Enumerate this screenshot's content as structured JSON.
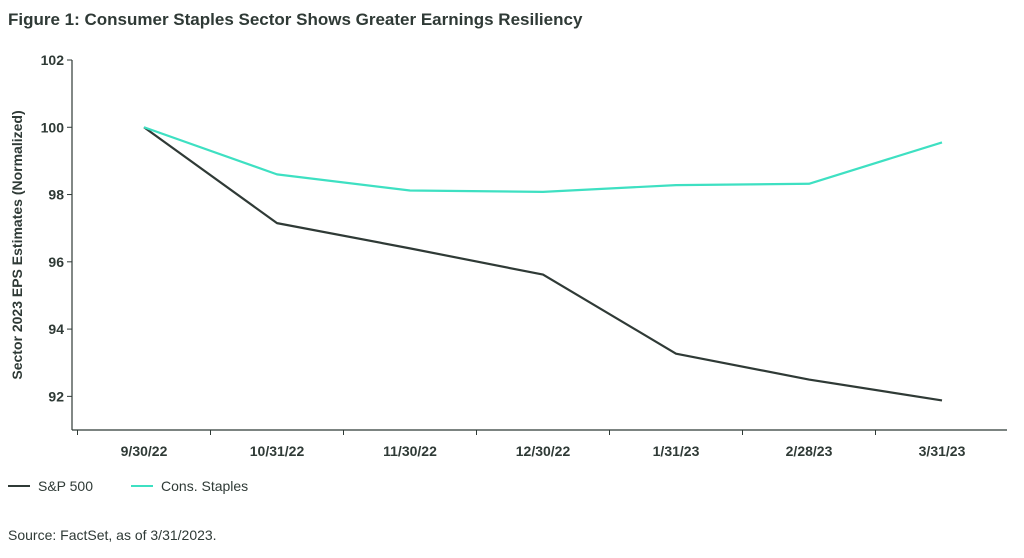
{
  "figure_title": "Figure 1: Consumer Staples Sector Shows Greater Earnings Resiliency",
  "source": "Source: FactSet, as of 3/31/2023.",
  "colors": {
    "sp500": "#2f3a36",
    "staples": "#3ee0c2",
    "axis": "#2f3a36",
    "text": "#2f3a36"
  },
  "chart_data": {
    "type": "line",
    "title": "Figure 1: Consumer Staples Sector Shows Greater Earnings Resiliency",
    "xlabel": "",
    "ylabel": "Sector 2023 EPS Estimates (Normalized)",
    "categories": [
      "9/30/22",
      "10/31/22",
      "11/30/22",
      "12/30/22",
      "1/31/23",
      "2/28/23",
      "3/31/23"
    ],
    "ylim": [
      91,
      102
    ],
    "yticks": [
      92,
      94,
      96,
      98,
      100,
      102
    ],
    "grid": false,
    "legend_position": "bottom-left",
    "series": [
      {
        "name": "S&P 500",
        "values": [
          100.0,
          97.15,
          96.4,
          95.62,
          93.27,
          92.5,
          91.88
        ]
      },
      {
        "name": "Cons. Staples",
        "values": [
          100.0,
          98.6,
          98.12,
          98.08,
          98.28,
          98.32,
          99.55
        ]
      }
    ]
  }
}
